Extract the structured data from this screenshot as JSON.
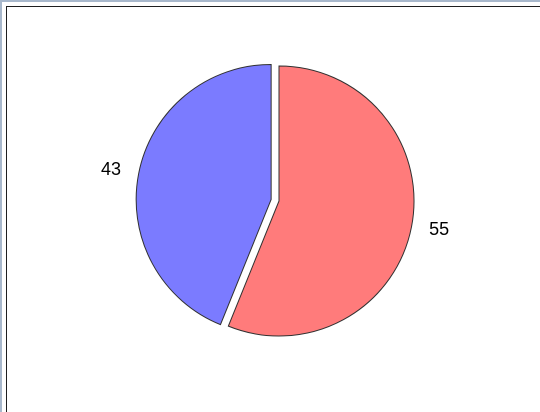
{
  "chart_data": {
    "type": "pie",
    "values": [
      55,
      43
    ],
    "labels": [
      "55",
      "43"
    ],
    "colors": [
      "#ff7b7b",
      "#7b7bff"
    ],
    "slice_outline_color": "#303030",
    "exploded_slice_index": 1
  }
}
